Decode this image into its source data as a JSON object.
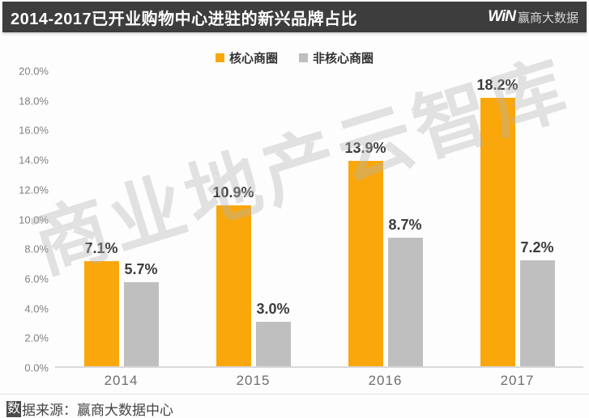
{
  "header": {
    "title": "2014-2017已开业购物中心进驻的新兴品牌占比",
    "logo": {
      "win": "WiN",
      "name": "赢商大数据"
    }
  },
  "watermark": "商业地产云智库",
  "footer": {
    "source_prefix": "数",
    "source_rest": "据来源：赢商大数据中心"
  },
  "colors": {
    "header_bg": "#3d3d3d",
    "core_orange": "#F9A70A",
    "noncore_gray": "#BFBFBF",
    "footer_prefix_bg": "#4a4a4a"
  },
  "chart_data": {
    "type": "bar",
    "title": "2014-2017已开业购物中心进驻的新兴品牌占比",
    "categories": [
      "2014",
      "2015",
      "2016",
      "2017"
    ],
    "series": [
      {
        "name": "核心商圈",
        "color": "#F9A70A",
        "values": [
          7.1,
          10.9,
          13.9,
          18.2
        ]
      },
      {
        "name": "非核心商圈",
        "color": "#BFBFBF",
        "values": [
          5.7,
          3.0,
          8.7,
          7.2
        ]
      }
    ],
    "xlabel": "",
    "ylabel": "",
    "ylim": [
      0,
      20
    ],
    "ytick_step": 2,
    "ytick_suffix": "%",
    "value_suffix": "%",
    "grid": false,
    "legend_position": "top"
  }
}
